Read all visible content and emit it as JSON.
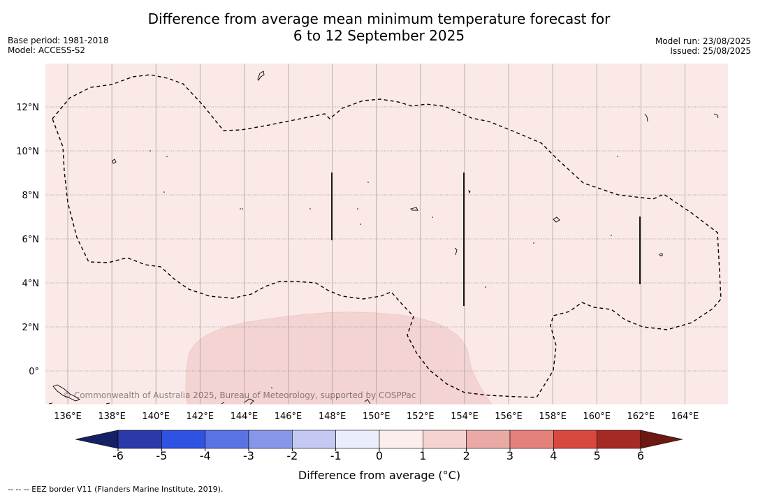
{
  "title_line1": "Difference from average mean minimum temperature forecast for",
  "title_line2": "6 to 12 September 2025",
  "meta_left": {
    "base_period": "Base period: 1981-2018",
    "model": "Model: ACCESS-S2"
  },
  "meta_right": {
    "model_run": "Model run: 23/08/2025",
    "issued": "Issued: 25/08/2025"
  },
  "map": {
    "lon_labels": [
      "136°E",
      "138°E",
      "140°E",
      "142°E",
      "144°E",
      "146°E",
      "148°E",
      "150°E",
      "152°E",
      "154°E",
      "156°E",
      "158°E",
      "160°E",
      "162°E",
      "164°E"
    ],
    "lat_labels": [
      "12°N",
      "10°N",
      "8°N",
      "6°N",
      "4°N",
      "2°N",
      "0°"
    ],
    "copyright": "© Commonwealth of Australia 2025, Bureau of Meteorology, supported by COSPPac",
    "background_color": "#fbe9e8",
    "anomaly_color": "#f3d4d2"
  },
  "colorbar": {
    "label": "Difference from average (°C)",
    "ticks": [
      "-6",
      "-5",
      "-4",
      "-3",
      "-2",
      "-1",
      "0",
      "1",
      "2",
      "3",
      "4",
      "5",
      "6"
    ],
    "colors": [
      "#162064",
      "#2a3aa8",
      "#3052e2",
      "#5a73e3",
      "#8896ea",
      "#c3c9f3",
      "#eaedfb",
      "#fdeeee",
      "#f4d2d0",
      "#eba9a5",
      "#e4817b",
      "#d7483f",
      "#a52a25",
      "#6e1813"
    ]
  },
  "footnote": "--  --  -- EEZ border V11 (Flanders Marine Institute, 2019)."
}
